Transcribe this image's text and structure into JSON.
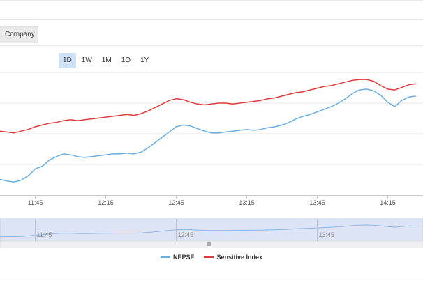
{
  "toolbar": {
    "company_label": "Company"
  },
  "range_selector": {
    "buttons": [
      "1D",
      "1W",
      "1M",
      "1Q",
      "1Y"
    ],
    "active": "1D"
  },
  "colors": {
    "nepse": "#6aaee3",
    "sensitive": "#e03a3a",
    "navigator_fill": "#dde4f5",
    "grid": "#e6e6e6"
  },
  "chart_data": {
    "type": "line",
    "xlabel": "",
    "ylabel": "",
    "x_ticks": [
      "11:45",
      "12:15",
      "12:45",
      "13:15",
      "13:45",
      "14:15"
    ],
    "navigator_ticks": [
      "11:45",
      "12:45",
      "13:45"
    ],
    "legend_position": "bottom-center",
    "grid": true,
    "series": [
      {
        "name": "NEPSE",
        "color": "#6aaee3",
        "x": [
          "11:30",
          "11:33",
          "11:36",
          "11:39",
          "11:42",
          "11:45",
          "11:48",
          "11:51",
          "11:54",
          "11:57",
          "12:00",
          "12:03",
          "12:06",
          "12:09",
          "12:12",
          "12:15",
          "12:18",
          "12:21",
          "12:24",
          "12:27",
          "12:30",
          "12:33",
          "12:36",
          "12:39",
          "12:42",
          "12:45",
          "12:48",
          "12:51",
          "12:54",
          "12:57",
          "13:00",
          "13:03",
          "13:06",
          "13:09",
          "13:12",
          "13:15",
          "13:18",
          "13:21",
          "13:24",
          "13:27",
          "13:30",
          "13:33",
          "13:36",
          "13:39",
          "13:42",
          "13:45",
          "13:48",
          "13:51",
          "13:54",
          "13:57",
          "14:00",
          "14:03",
          "14:06",
          "14:09",
          "14:12",
          "14:15",
          "14:18",
          "14:21",
          "14:24",
          "14:27"
        ],
        "values": [
          18,
          16,
          15,
          17,
          22,
          30,
          33,
          40,
          44,
          47,
          46,
          44,
          43,
          44,
          45,
          46,
          47,
          47,
          48,
          47,
          49,
          54,
          60,
          66,
          72,
          78,
          80,
          79,
          76,
          73,
          71,
          71,
          72,
          73,
          74,
          75,
          74,
          75,
          77,
          78,
          80,
          83,
          87,
          90,
          92,
          95,
          98,
          101,
          105,
          110,
          116,
          120,
          121,
          119,
          114,
          106,
          101,
          108,
          112,
          113
        ]
      },
      {
        "name": "Sensitive Index",
        "color": "#e03a3a",
        "x": [
          "11:30",
          "11:33",
          "11:36",
          "11:39",
          "11:42",
          "11:45",
          "11:48",
          "11:51",
          "11:54",
          "11:57",
          "12:00",
          "12:03",
          "12:06",
          "12:09",
          "12:12",
          "12:15",
          "12:18",
          "12:21",
          "12:24",
          "12:27",
          "12:30",
          "12:33",
          "12:36",
          "12:39",
          "12:42",
          "12:45",
          "12:48",
          "12:51",
          "12:54",
          "12:57",
          "13:00",
          "13:03",
          "13:06",
          "13:09",
          "13:12",
          "13:15",
          "13:18",
          "13:21",
          "13:24",
          "13:27",
          "13:30",
          "13:33",
          "13:36",
          "13:39",
          "13:42",
          "13:45",
          "13:48",
          "13:51",
          "13:54",
          "13:57",
          "14:00",
          "14:03",
          "14:06",
          "14:09",
          "14:12",
          "14:15",
          "14:18",
          "14:21",
          "14:24",
          "14:27"
        ],
        "values": [
          73,
          72,
          71,
          73,
          75,
          78,
          80,
          82,
          83,
          85,
          86,
          85,
          86,
          87,
          88,
          89,
          90,
          91,
          92,
          91,
          93,
          96,
          100,
          104,
          108,
          110,
          109,
          106,
          104,
          103,
          104,
          105,
          105,
          104,
          105,
          106,
          107,
          108,
          110,
          111,
          113,
          115,
          117,
          118,
          120,
          122,
          124,
          125,
          127,
          129,
          131,
          132,
          132,
          130,
          125,
          121,
          120,
          123,
          126,
          127
        ]
      }
    ]
  }
}
